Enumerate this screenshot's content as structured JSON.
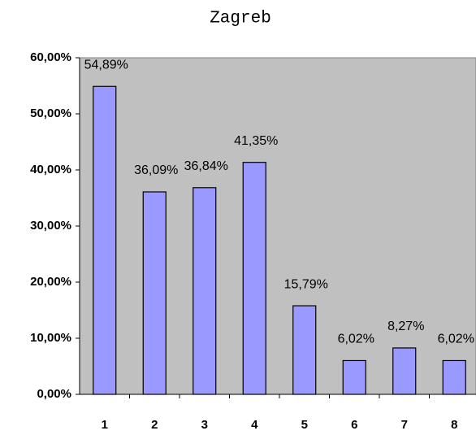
{
  "chart_data": {
    "type": "bar",
    "title": "Zagreb",
    "categories": [
      "1",
      "2",
      "3",
      "4",
      "5",
      "6",
      "7",
      "8"
    ],
    "values": [
      54.89,
      36.09,
      36.84,
      41.35,
      15.79,
      6.02,
      8.27,
      6.02
    ],
    "value_labels": [
      "54,89%",
      "36,09%",
      "36,84%",
      "41,35%",
      "15,79%",
      "6,02%",
      "8,27%",
      "6,02%"
    ],
    "color": "#9999ff",
    "ylim": [
      0,
      60
    ],
    "yticks": [
      {
        "value": 0,
        "label": "0,00%"
      },
      {
        "value": 10,
        "label": "10,00%"
      },
      {
        "value": 20,
        "label": "20,00%"
      },
      {
        "value": 30,
        "label": "30,00%"
      },
      {
        "value": 40,
        "label": "40,00%"
      },
      {
        "value": 50,
        "label": "50,00%"
      },
      {
        "value": 60,
        "label": "60,00%"
      }
    ]
  }
}
